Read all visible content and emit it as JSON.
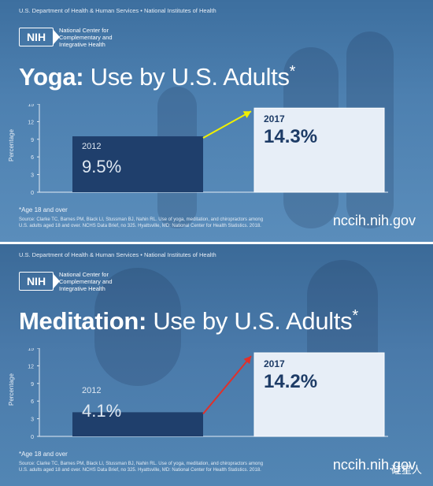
{
  "panels": [
    {
      "agency": "U.S. Department of Health & Human Services • National Institutes of Health",
      "logo_text": "NIH",
      "center_name": [
        "National Center for",
        "Complementary and",
        "Integrative Health"
      ],
      "title_bold": "Yoga:",
      "title_rest": " Use by U.S. Adults",
      "title_star": "*",
      "ylabel": "Percentage",
      "footnote": "*Age 18 and over",
      "source": [
        "Source: Clarke TC, Barnes PM, Black LI, Stussman BJ, Nahin RL. Use of yoga, meditation, and chiropractors among",
        "U.S. adults aged 18 and over. NCHS Data Brief, no 325. Hyattsville, MD: National Center for Health Statistics. 2018."
      ],
      "url": "nccih.nih.gov"
    },
    {
      "agency": "U.S. Department of Health & Human Services • National Institutes of Health",
      "logo_text": "NIH",
      "center_name": [
        "National Center for",
        "Complementary and",
        "Integrative Health"
      ],
      "title_bold": "Meditation:",
      "title_rest": " Use by U.S. Adults",
      "title_star": "*",
      "ylabel": "Percentage",
      "footnote": "*Age 18 and over",
      "source": [
        "Source: Clarke TC, Barnes PM, Black LI, Stussman BJ, Nahin RL. Use of yoga, meditation, and chiropractors among",
        "U.S. adults aged 18 and over. NCHS Data Brief, no 325. Hyattsville, MD: National Center for Health Statistics. 2018."
      ],
      "url": "nccih.nih.gov",
      "watermark": "硅星人"
    }
  ],
  "chart_data": [
    {
      "type": "bar",
      "categories": [
        "2012",
        "2017"
      ],
      "values": [
        9.5,
        14.3
      ],
      "value_labels": [
        "9.5%",
        "14.3%"
      ],
      "ylabel": "Percentage",
      "yticks": [
        0,
        3,
        6,
        9,
        12,
        15
      ],
      "ylim": [
        0,
        15
      ],
      "grid": false,
      "colors": {
        "bar_2012": "#1f3f6c",
        "bar_2017": "#e7eef7",
        "arrow": "#f0f000"
      }
    },
    {
      "type": "bar",
      "categories": [
        "2012",
        "2017"
      ],
      "values": [
        4.1,
        14.2
      ],
      "value_labels": [
        "4.1%",
        "14.2%"
      ],
      "ylabel": "Percentage",
      "yticks": [
        0,
        3,
        6,
        9,
        12,
        15
      ],
      "ylim": [
        0,
        15
      ],
      "grid": false,
      "colors": {
        "bar_2012": "#1f3f6c",
        "bar_2017": "#e7eef7",
        "arrow": "#e0302a"
      }
    }
  ]
}
